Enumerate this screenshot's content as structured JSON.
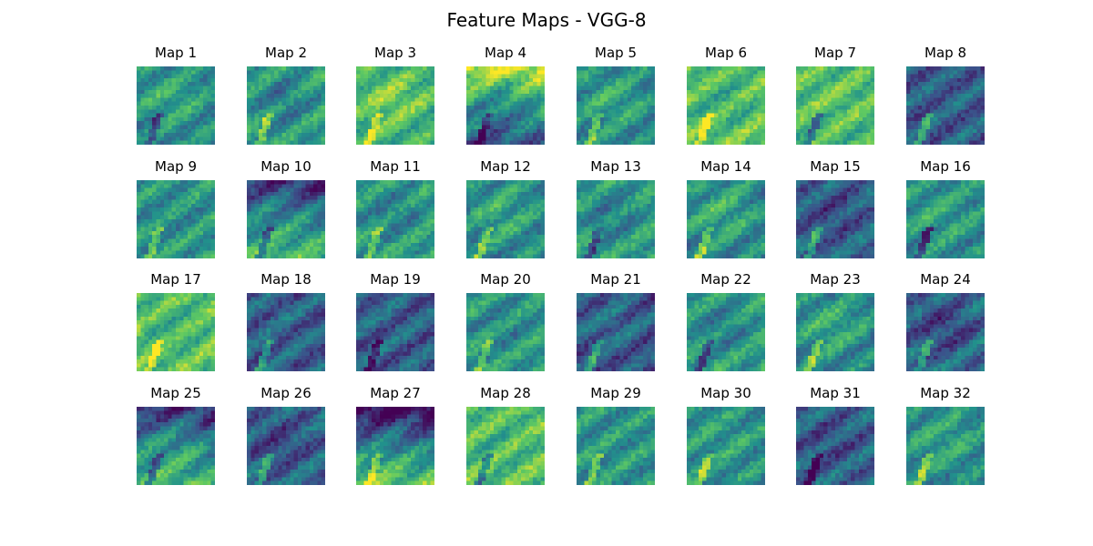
{
  "figure_title": "Feature Maps - VGG-8",
  "colormap": "viridis",
  "colormap_stops": [
    "#440154",
    "#3b528b",
    "#21918c",
    "#5ec962",
    "#fde725"
  ],
  "chart_data": {
    "type": "heatmap",
    "title": "Feature Maps - VGG-8",
    "grid": {
      "rows": 4,
      "cols": 8
    },
    "axes_visible": false,
    "panels": [
      {
        "title": "Map 1",
        "tone": "mid"
      },
      {
        "title": "Map 2",
        "tone": "mid"
      },
      {
        "title": "Map 3",
        "tone": "bright"
      },
      {
        "title": "Map 4",
        "tone": "bright-top-dark-bottom"
      },
      {
        "title": "Map 5",
        "tone": "mid"
      },
      {
        "title": "Map 6",
        "tone": "bright"
      },
      {
        "title": "Map 7",
        "tone": "bright"
      },
      {
        "title": "Map 8",
        "tone": "dark"
      },
      {
        "title": "Map 9",
        "tone": "mid"
      },
      {
        "title": "Map 10",
        "tone": "bright-bottom"
      },
      {
        "title": "Map 11",
        "tone": "mid"
      },
      {
        "title": "Map 12",
        "tone": "mid"
      },
      {
        "title": "Map 13",
        "tone": "mid"
      },
      {
        "title": "Map 14",
        "tone": "mid"
      },
      {
        "title": "Map 15",
        "tone": "dark"
      },
      {
        "title": "Map 16",
        "tone": "mid"
      },
      {
        "title": "Map 17",
        "tone": "bright"
      },
      {
        "title": "Map 18",
        "tone": "dark"
      },
      {
        "title": "Map 19",
        "tone": "dark"
      },
      {
        "title": "Map 20",
        "tone": "mid"
      },
      {
        "title": "Map 21",
        "tone": "dark"
      },
      {
        "title": "Map 22",
        "tone": "mid"
      },
      {
        "title": "Map 23",
        "tone": "mid"
      },
      {
        "title": "Map 24",
        "tone": "dark"
      },
      {
        "title": "Map 25",
        "tone": "bright-bottom"
      },
      {
        "title": "Map 26",
        "tone": "dark"
      },
      {
        "title": "Map 27",
        "tone": "dark-top-bright-bottom"
      },
      {
        "title": "Map 28",
        "tone": "bright"
      },
      {
        "title": "Map 29",
        "tone": "mid"
      },
      {
        "title": "Map 30",
        "tone": "mid"
      },
      {
        "title": "Map 31",
        "tone": "dark"
      },
      {
        "title": "Map 32",
        "tone": "mid"
      }
    ]
  }
}
